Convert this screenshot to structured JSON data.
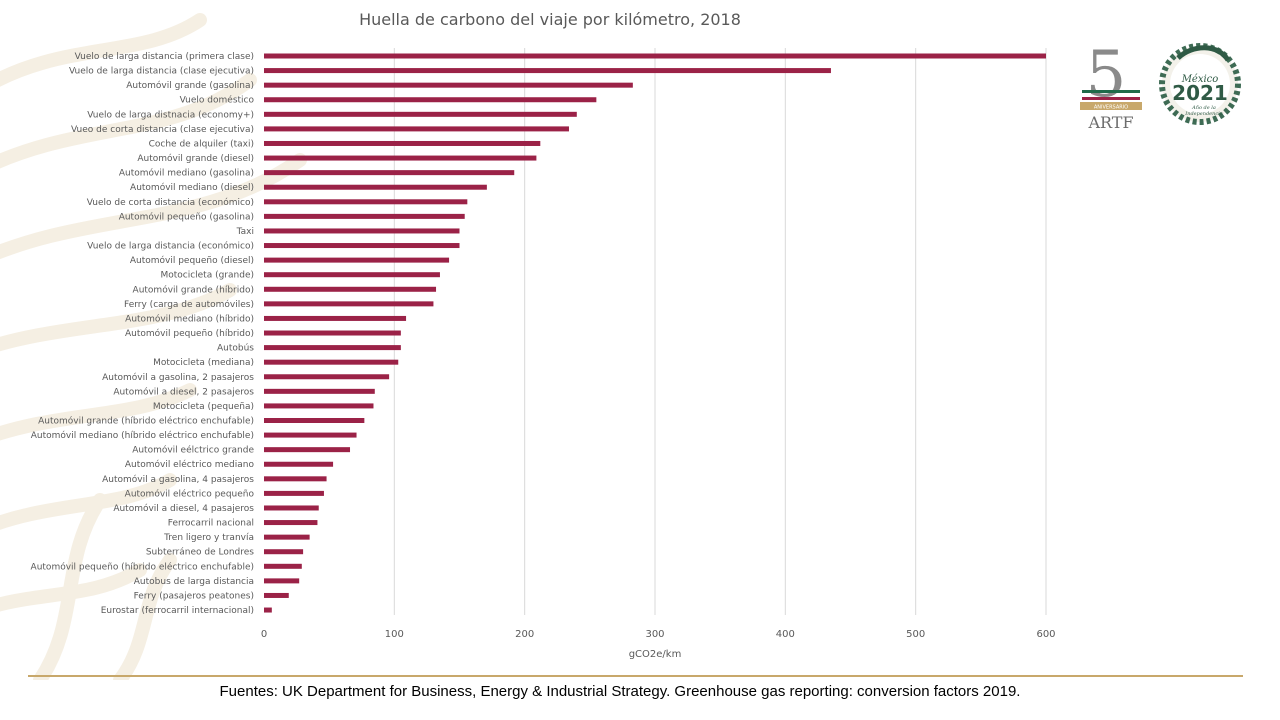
{
  "colors": {
    "bar": "#9b2247",
    "grid": "#d9d9d9",
    "text": "#595959",
    "footer_rule": "#c8a86b"
  },
  "logos": {
    "artf": {
      "number": "5",
      "ribbon": "ANIVERSARIO",
      "wordmark": "ARTF"
    },
    "mexico": {
      "line1": "México",
      "line2": "2021",
      "line3": "Año de la",
      "line4": "Independencia"
    }
  },
  "footer": {
    "source": "Fuentes: UK Department for Business, Energy & Industrial Strategy. Greenhouse gas reporting: conversion factors 2019."
  },
  "chart_data": {
    "type": "bar",
    "orientation": "horizontal",
    "title": "Huella de carbono  del viaje por kilómetro, 2018",
    "xlabel": "gCO2e/km",
    "ylabel": "",
    "xlim": [
      0,
      600
    ],
    "xticks": [
      0,
      100,
      200,
      300,
      400,
      500,
      600
    ],
    "grid": true,
    "legend": "none",
    "categories": [
      "Vuelo de larga distancia (primera clase)",
      "Vuelo de larga distancia (clase ejecutiva)",
      "Automóvil grande (gasolina)",
      "Vuelo doméstico",
      "Vuelo de larga distnacia (economy+)",
      "Vueo de corta distancia (clase ejecutiva)",
      "Coche de alquiler (taxi)",
      "Automóvil grande (diesel)",
      "Automóvil mediano (gasolina)",
      "Automóvil mediano (diesel)",
      "Vuelo de corta distancia (económico)",
      "Automóvil pequeño (gasolina)",
      "Taxi",
      "Vuelo de larga distancia (económico)",
      "Automóvil pequeño (diesel)",
      "Motocicleta (grande)",
      "Automóvil grande (híbrido)",
      "Ferry (carga de automóviles)",
      "Automóvil mediano (híbrido)",
      "Automóvil pequeño (híbrido)",
      "Autobús",
      "Motocicleta (mediana)",
      "Automóvil a gasolina, 2 pasajeros",
      "Automóvil a diesel, 2 pasajeros",
      "Motocicleta (pequeña)",
      "Automóvil grande (híbrido eléctrico enchufable)",
      "Automóvil mediano (híbrido eléctrico enchufable)",
      "Automóvil eélctrico grande",
      "Automóvil eléctrico mediano",
      "Automóvil a gasolina, 4 pasajeros",
      "Automóvil eléctrico pequeño",
      "Automóvil a diesel, 4 pasajeros",
      "Ferrocarril nacional",
      "Tren ligero y tranvía",
      "Subterráneo de Londres",
      "Automóvil pequeño (híbrido eléctrico enchufable)",
      "Autobus de larga distancia",
      "Ferry (pasajeros peatones)",
      "Eurostar (ferrocarril internacional)"
    ],
    "values": [
      600,
      435,
      283,
      255,
      240,
      234,
      212,
      209,
      192,
      171,
      156,
      154,
      150,
      150,
      142,
      135,
      132,
      130,
      109,
      105,
      105,
      103,
      96,
      85,
      84,
      77,
      71,
      66,
      53,
      48,
      46,
      42,
      41,
      35,
      30,
      29,
      27,
      19,
      6
    ]
  }
}
